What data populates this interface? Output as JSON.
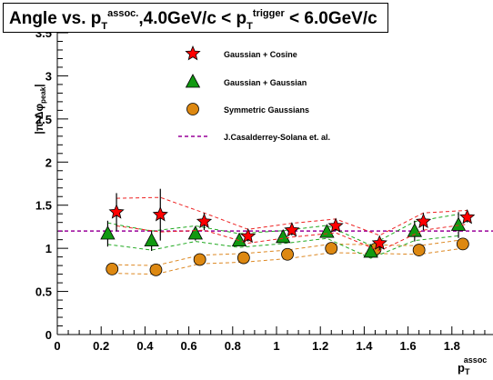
{
  "title": {
    "lead": "Angle vs. p",
    "sub1": "T",
    "sup1": "assoc.",
    "mid": ",4.0GeV/c < p",
    "sub2": "T",
    "sup2": "trigger",
    "tail": " < 6.0GeV/c"
  },
  "chart_data": {
    "type": "scatter",
    "title": "Angle vs. pT assoc.,4.0GeV/c < pT trigger < 6.0GeV/c",
    "ylabel": {
      "main": "|π-Δφ",
      "sub": "peak",
      "tail": "|"
    },
    "xlabel": {
      "main": "p",
      "sub": "T",
      "sup": "assoc"
    },
    "xlim": [
      0,
      2.0
    ],
    "ylim": [
      0,
      3.5
    ],
    "x_ticks": [
      "0",
      "0.2",
      "0.4",
      "0.6",
      "0.8",
      "1",
      "1.2",
      "1.4",
      "1.6",
      "1.8"
    ],
    "y_ticks": [
      "0",
      "0.5",
      "1",
      "1.5",
      "2",
      "2.5",
      "3",
      "3.5"
    ],
    "legend_position": "top-center",
    "series": [
      {
        "name": "Gaussian + Cosine",
        "marker": "star",
        "color": "#ff0000",
        "line_color": "#ee2222",
        "x": [
          0.27,
          0.47,
          0.67,
          0.87,
          1.07,
          1.27,
          1.47,
          1.67,
          1.87
        ],
        "y": [
          1.42,
          1.39,
          1.31,
          1.14,
          1.21,
          1.26,
          1.06,
          1.31,
          1.36
        ],
        "err": [
          0.22,
          0.3,
          0.1,
          0.06,
          0.06,
          0.06,
          0.08,
          0.1,
          0.06
        ]
      },
      {
        "name": "Gaussian + Gaussian",
        "marker": "triangle",
        "color": "#119911",
        "line_color": "#22aa22",
        "x": [
          0.23,
          0.43,
          0.63,
          0.83,
          1.03,
          1.23,
          1.43,
          1.63,
          1.83
        ],
        "y": [
          1.17,
          1.09,
          1.17,
          1.09,
          1.13,
          1.19,
          0.96,
          1.2,
          1.27
        ],
        "err": [
          0.15,
          0.12,
          0.08,
          0.06,
          0.05,
          0.05,
          0.05,
          0.12,
          0.15
        ]
      },
      {
        "name": "Symmetric Gaussians",
        "marker": "circle",
        "color": "#dd8811",
        "line_color": "#dd8822",
        "x": [
          0.25,
          0.45,
          0.65,
          0.85,
          1.05,
          1.25,
          1.45,
          1.65,
          1.85
        ],
        "y": [
          0.76,
          0.75,
          0.87,
          0.89,
          0.93,
          1.0,
          0.99,
          0.98,
          1.05
        ],
        "err": [
          0,
          0,
          0,
          0,
          0,
          0,
          0,
          0,
          0
        ]
      }
    ],
    "reference_line": {
      "name": "J.Casalderrey-Solana et. al.",
      "y": 1.2,
      "color": "#990099"
    }
  }
}
